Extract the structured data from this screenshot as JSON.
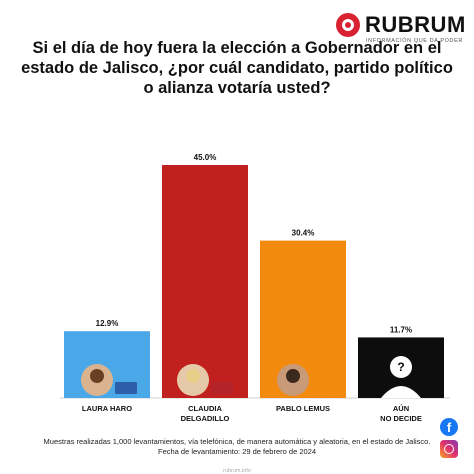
{
  "brand": {
    "name": "RUBRUM",
    "tagline": "INFORMACIÓN QUE DA PODER",
    "color": "#d92231",
    "bottom_text": "rubrum.info"
  },
  "chart_data": {
    "type": "bar",
    "title": "Si el día de hoy fuera la elección a Gobernador en el estado de  Jalisco, ¿por cuál candidato, partido político o alianza votaría usted?",
    "categories": [
      "LAURA HARO",
      "CLAUDIA DELGADILLO",
      "PABLO LEMUS",
      "AÚN NO DECIDE"
    ],
    "values": [
      12.9,
      45.0,
      30.4,
      11.7
    ],
    "value_labels": [
      "12.9%",
      "45.0%",
      "30.4%",
      "11.7%"
    ],
    "colors": [
      "#4aa8e8",
      "#c0201e",
      "#f28a10",
      "#0d0d0d"
    ],
    "ylim": [
      0,
      45
    ],
    "grid": false,
    "xlabel": "",
    "ylabel": ""
  },
  "footer": {
    "line1": "Muestras realizadas 1,000 levantamientos, vía telefónica, de manera automática y aleatoria, en el estado de Jalisco.",
    "line2": "Fecha de levantamiento: 29 de febrero de 2024"
  },
  "icons": {
    "social": [
      "facebook-icon",
      "instagram-icon"
    ],
    "unknown_marker": "?"
  }
}
